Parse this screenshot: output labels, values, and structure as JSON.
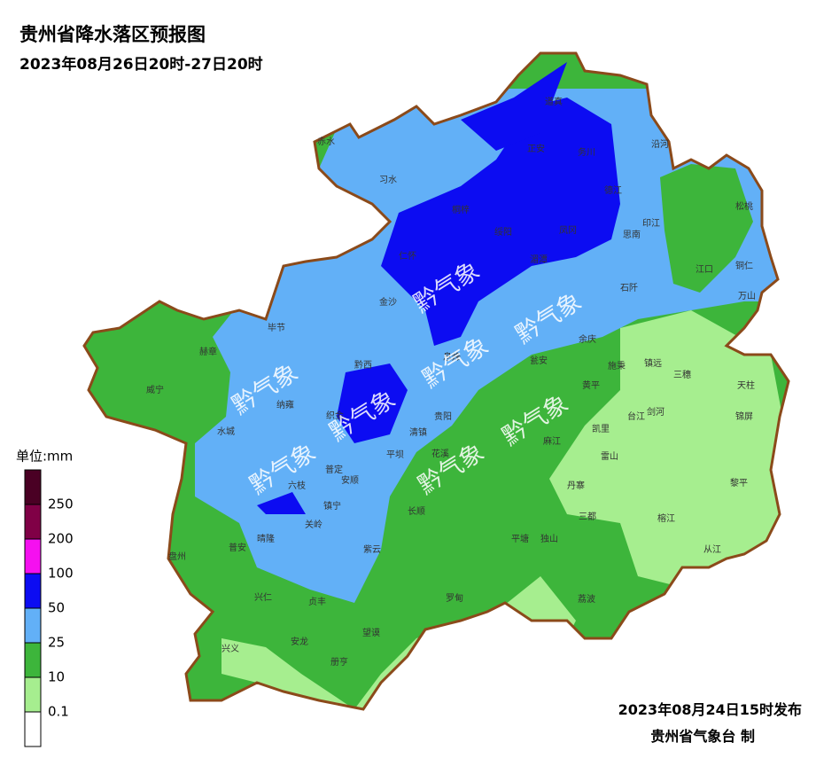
{
  "title": "贵州省降水落区预报图",
  "subtitle": "2023年08月26日20时-27日20时",
  "legend": {
    "unit": "单位:mm",
    "levels": [
      250,
      200,
      100,
      50,
      25,
      10,
      0.1
    ],
    "colors": [
      "#4a0024",
      "#800046",
      "#f510f0",
      "#0c0cf2",
      "#62b0f7",
      "#3db53b",
      "#a6ee8f",
      "#ffffff"
    ]
  },
  "watermark": "黔气象",
  "issued": "2023年08月24日15时发布",
  "producer": "贵州省气象台 制",
  "labels": [
    "道真",
    "正安",
    "务川",
    "沿河",
    "赤水",
    "习水",
    "桐梓",
    "德江",
    "松桃",
    "绥阳",
    "凤冈",
    "印江",
    "思南",
    "仁怀",
    "湄潭",
    "江口",
    "铜仁",
    "万山",
    "石阡",
    "金沙",
    "毕节",
    "赫章",
    "余庆",
    "施秉",
    "镇远",
    "三穗",
    "天柱",
    "威宁",
    "黔西",
    "息烽",
    "瓮安",
    "黄平",
    "纳雍",
    "织金",
    "台江",
    "剑河",
    "锦屏",
    "水城",
    "清镇",
    "贵阳",
    "凯里",
    "麻江",
    "平坝",
    "花溪",
    "雷山",
    "六枝",
    "普定",
    "安顺",
    "丹寨",
    "黎平",
    "镇宁",
    "长顺",
    "三都",
    "关岭",
    "独山",
    "平塘",
    "榕江",
    "晴隆",
    "紫云",
    "盘州",
    "普安",
    "从江",
    "兴仁",
    "贞丰",
    "罗甸",
    "荔波",
    "兴义",
    "安龙",
    "望谟",
    "册亨"
  ]
}
